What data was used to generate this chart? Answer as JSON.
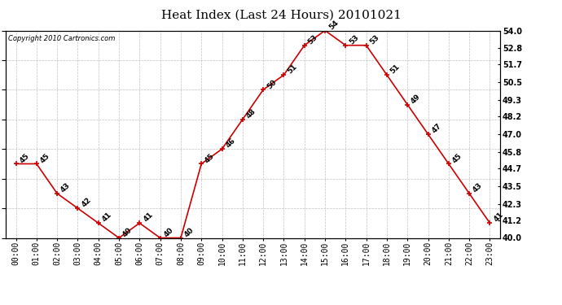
{
  "title": "Heat Index (Last 24 Hours) 20101021",
  "copyright": "Copyright 2010 Cartronics.com",
  "hours": [
    "00:00",
    "01:00",
    "02:00",
    "03:00",
    "04:00",
    "05:00",
    "06:00",
    "07:00",
    "08:00",
    "09:00",
    "10:00",
    "11:00",
    "12:00",
    "13:00",
    "14:00",
    "15:00",
    "16:00",
    "17:00",
    "18:00",
    "19:00",
    "20:00",
    "21:00",
    "22:00",
    "23:00"
  ],
  "values": [
    45,
    45,
    43,
    42,
    41,
    40,
    41,
    40,
    40,
    45,
    46,
    48,
    50,
    51,
    53,
    54,
    53,
    53,
    51,
    49,
    47,
    45,
    43,
    41
  ],
  "ylim_min": 40.0,
  "ylim_max": 54.0,
  "yticks": [
    40.0,
    41.2,
    42.3,
    43.5,
    44.7,
    45.8,
    47.0,
    48.2,
    49.3,
    50.5,
    51.7,
    52.8,
    54.0
  ],
  "line_color": "#cc0000",
  "marker_color": "#cc0000",
  "bg_color": "#ffffff",
  "plot_bg_color": "#ffffff",
  "grid_color": "#bbbbbb",
  "title_fontsize": 11,
  "tick_fontsize": 7,
  "label_fontsize": 6.5,
  "copyright_fontsize": 6
}
